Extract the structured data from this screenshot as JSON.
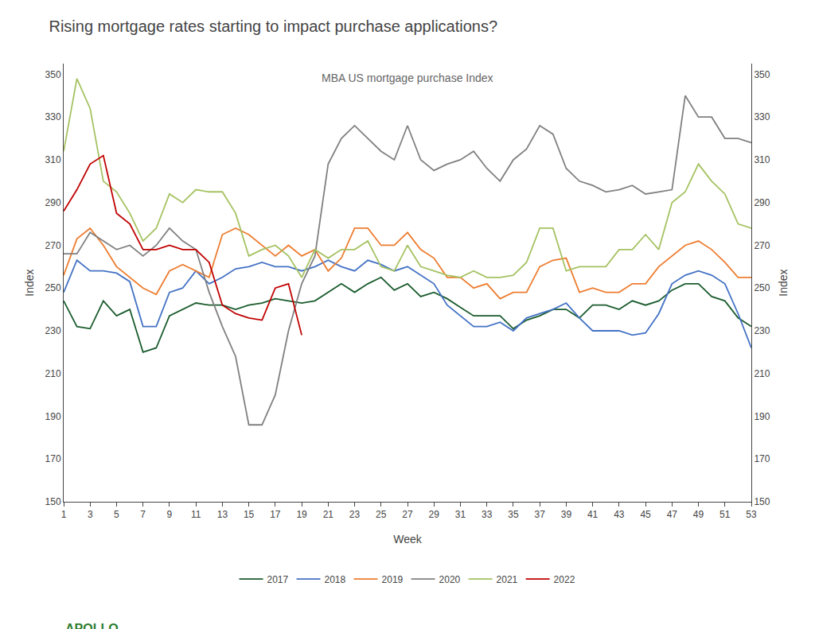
{
  "chart_data": {
    "type": "line",
    "title": "Rising mortgage rates starting to impact purchase applications?",
    "xlabel": "Week",
    "ylabel": "Index",
    "y2label": "Index",
    "x": [
      1,
      2,
      3,
      4,
      5,
      6,
      7,
      8,
      9,
      10,
      11,
      12,
      13,
      14,
      15,
      16,
      17,
      18,
      19,
      20,
      21,
      22,
      23,
      24,
      25,
      26,
      27,
      28,
      29,
      30,
      31,
      32,
      33,
      34,
      35,
      36,
      37,
      38,
      39,
      40,
      41,
      42,
      43,
      44,
      45,
      46,
      47,
      48,
      49,
      50,
      51,
      52,
      53
    ],
    "xlim": [
      1,
      53
    ],
    "xticks": [
      1,
      3,
      5,
      7,
      9,
      11,
      13,
      15,
      17,
      19,
      21,
      23,
      25,
      27,
      29,
      31,
      33,
      35,
      37,
      39,
      41,
      43,
      45,
      47,
      49,
      51,
      53
    ],
    "ylim": [
      150,
      355
    ],
    "yticks": [
      150,
      170,
      190,
      210,
      230,
      250,
      270,
      290,
      310,
      330,
      350
    ],
    "y2lim": [
      150,
      355
    ],
    "y2ticks": [
      150,
      170,
      190,
      210,
      230,
      250,
      270,
      290,
      310,
      330,
      350
    ],
    "grid": false,
    "legend": "bottom",
    "series": [
      {
        "name": "2017",
        "color": "#1a5c2e",
        "values": [
          244,
          232,
          231,
          244,
          237,
          240,
          220,
          222,
          237,
          240,
          243,
          242,
          242,
          240,
          242,
          243,
          245,
          244,
          243,
          244,
          248,
          252,
          248,
          252,
          255,
          249,
          252,
          246,
          248,
          245,
          241,
          237,
          237,
          237,
          231,
          235,
          237,
          240,
          240,
          236,
          242,
          242,
          240,
          244,
          242,
          244,
          249,
          252,
          252,
          246,
          244,
          236,
          232
        ]
      },
      {
        "name": "2018",
        "color": "#4472c4",
        "values": [
          248,
          263,
          258,
          258,
          257,
          253,
          232,
          232,
          248,
          250,
          258,
          252,
          255,
          259,
          260,
          262,
          260,
          260,
          258,
          260,
          263,
          260,
          258,
          263,
          261,
          258,
          260,
          256,
          252,
          242,
          237,
          232,
          232,
          234,
          230,
          236,
          238,
          240,
          243,
          236,
          230,
          230,
          230,
          228,
          229,
          238,
          252,
          256,
          258,
          256,
          252,
          238,
          222
        ]
      },
      {
        "name": "2019",
        "color": "#ed7d31",
        "values": [
          256,
          273,
          278,
          270,
          260,
          255,
          250,
          247,
          258,
          261,
          258,
          255,
          275,
          278,
          275,
          270,
          265,
          270,
          265,
          268,
          258,
          264,
          278,
          278,
          270,
          270,
          276,
          268,
          264,
          255,
          255,
          250,
          252,
          245,
          248,
          248,
          260,
          263,
          264,
          248,
          250,
          248,
          248,
          252,
          252,
          260,
          265,
          270,
          272,
          268,
          262,
          255,
          255
        ]
      },
      {
        "name": "2020",
        "color": "#808080",
        "values": [
          266,
          266,
          276,
          272,
          268,
          270,
          265,
          270,
          278,
          272,
          268,
          248,
          232,
          218,
          186,
          186,
          200,
          230,
          252,
          265,
          308,
          320,
          326,
          320,
          314,
          310,
          326,
          310,
          305,
          308,
          310,
          314,
          306,
          300,
          310,
          315,
          326,
          322,
          306,
          300,
          298,
          295,
          296,
          298,
          294,
          295,
          296,
          340,
          330,
          330,
          320,
          320,
          318
        ]
      },
      {
        "name": "2021",
        "color": "#a5c261",
        "values": [
          314,
          348,
          334,
          300,
          295,
          285,
          272,
          278,
          294,
          290,
          296,
          295,
          295,
          285,
          265,
          268,
          270,
          265,
          255,
          268,
          264,
          268,
          268,
          272,
          260,
          258,
          270,
          260,
          258,
          256,
          255,
          258,
          255,
          255,
          256,
          262,
          278,
          278,
          258,
          260,
          260,
          260,
          268,
          268,
          275,
          268,
          290,
          295,
          308,
          300,
          294,
          280,
          278
        ]
      },
      {
        "name": "2022",
        "color": "#c00000",
        "values": [
          286,
          296,
          308,
          312,
          285,
          280,
          268,
          268,
          270,
          268,
          268,
          262,
          242,
          238,
          236,
          235,
          250,
          252,
          228,
          null,
          null,
          null,
          null,
          null,
          null,
          null,
          null,
          null,
          null,
          null,
          null,
          null,
          null,
          null,
          null,
          null,
          null,
          null,
          null,
          null,
          null,
          null,
          null,
          null,
          null,
          null,
          null,
          null,
          null,
          null,
          null,
          null,
          null
        ]
      }
    ],
    "annotations": [
      {
        "text": "MBA US mortgage purchase Index"
      },
      {
        "text": "APOLLO",
        "color": "#2e7d32"
      }
    ]
  }
}
